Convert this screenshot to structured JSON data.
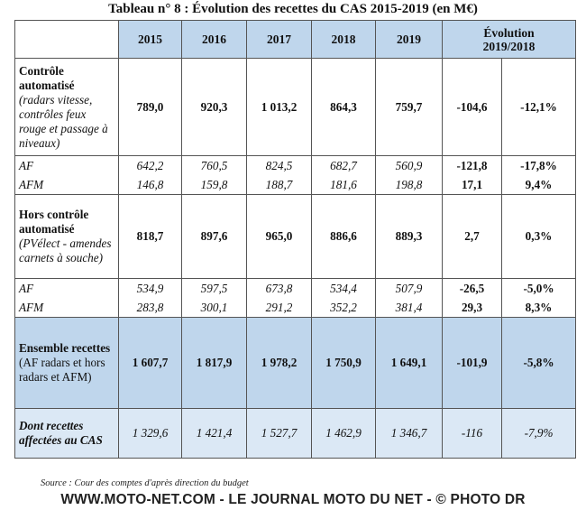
{
  "title": "Tableau n° 8 : Évolution des recettes du CAS 2015-2019 (en M€)",
  "headers": {
    "years": [
      "2015",
      "2016",
      "2017",
      "2018",
      "2019"
    ],
    "evolution_line1": "Évolution",
    "evolution_line2": "2019/2018"
  },
  "rows": {
    "ca": {
      "label_bold": "Contrôle automatisé",
      "label_italic": "(radars vitesse, contrôles feux rouge et passage à niveaux)",
      "values": [
        "789,0",
        "920,3",
        "1 013,2",
        "864,3",
        "759,7"
      ],
      "evol_abs": "-104,6",
      "evol_pct": "-12,1%"
    },
    "ca_af": {
      "label": "AF",
      "values": [
        "642,2",
        "760,5",
        "824,5",
        "682,7",
        "560,9"
      ],
      "evol_abs": "-121,8",
      "evol_pct": "-17,8%"
    },
    "ca_afm": {
      "label": "AFM",
      "values": [
        "146,8",
        "159,8",
        "188,7",
        "181,6",
        "198,8"
      ],
      "evol_abs": "17,1",
      "evol_pct": "9,4%"
    },
    "hca": {
      "label_bold": "Hors contrôle automatisé",
      "label_italic": "(PVélect - amendes carnets à souche)",
      "values": [
        "818,7",
        "897,6",
        "965,0",
        "886,6",
        "889,3"
      ],
      "evol_abs": "2,7",
      "evol_pct": "0,3%"
    },
    "hca_af": {
      "label": "AF",
      "values": [
        "534,9",
        "597,5",
        "673,8",
        "534,4",
        "507,9"
      ],
      "evol_abs": "-26,5",
      "evol_pct": "-5,0%"
    },
    "hca_afm": {
      "label": "AFM",
      "values": [
        "283,8",
        "300,1",
        "291,2",
        "352,2",
        "381,4"
      ],
      "evol_abs": "29,3",
      "evol_pct": "8,3%"
    },
    "total": {
      "label_bold": "Ensemble recettes",
      "label_normal": "(AF radars et hors radars et AFM)",
      "values": [
        "1 607,7",
        "1 817,9",
        "1 978,2",
        "1 750,9",
        "1 649,1"
      ],
      "evol_abs": "-101,9",
      "evol_pct": "-5,8%"
    },
    "affected": {
      "label": "Dont recettes affectées au CAS",
      "values": [
        "1 329,6",
        "1 421,4",
        "1 527,7",
        "1 462,9",
        "1 346,7"
      ],
      "evol_abs": "-116",
      "evol_pct": "-7,9%"
    }
  },
  "source": "Source : Cour des comptes d'après direction du budget",
  "banner": "WWW.MOTO-NET.COM - LE JOURNAL MOTO DU NET - © PHOTO DR",
  "colors": {
    "header_blue": "#bfd6ec",
    "total_blue": "#bfd6ec",
    "affected_blue": "#dbe8f5"
  }
}
